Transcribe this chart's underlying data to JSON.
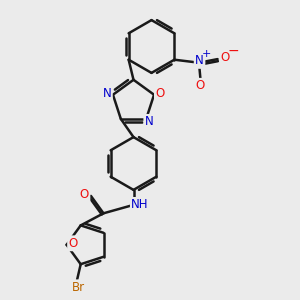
{
  "background_color": "#ebebeb",
  "bond_color": "#1a1a1a",
  "bond_width": 1.8,
  "atom_colors": {
    "O": "#ee1111",
    "N": "#0000cc",
    "Br": "#bb6600",
    "H": "#3a8888",
    "C": "#1a1a1a",
    "plus": "#0000cc",
    "minus": "#ee1111"
  },
  "font_size": 8.5,
  "fig_size": [
    3.0,
    3.0
  ],
  "dpi": 100
}
